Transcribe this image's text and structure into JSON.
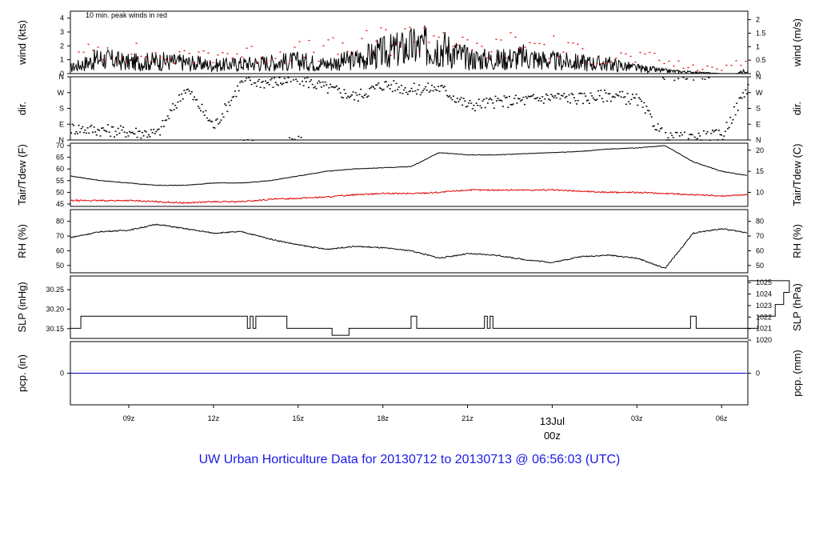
{
  "chart_data": {
    "type": "line",
    "x_range_utc": [
      "2013-07-12 06:56",
      "2013-07-13 06:56"
    ],
    "x_ticks": [
      "09z",
      "12z",
      "15z",
      "18z",
      "21z",
      "13Jul",
      "00z",
      "03z",
      "06z"
    ],
    "x_tick_hours": [
      9,
      12,
      15,
      18,
      21,
      24,
      27,
      30
    ],
    "date_label": "13Jul",
    "date_label_color": "#dd0000",
    "panels": [
      {
        "id": "wind",
        "ylabel_left": "wind (kts)",
        "ylabel_right": "wind (m/s)",
        "ylim": [
          0,
          4.5
        ],
        "left_ticks": [
          "0",
          "1",
          "2",
          "3",
          "4"
        ],
        "right_ticks": [
          "0",
          "0.5",
          "1",
          "1.5",
          "2"
        ],
        "annotation": "10 min. peak winds in red",
        "annotation_color": "#dd0000",
        "series": [
          {
            "name": "wind speed",
            "color": "#000000",
            "x": [
              6.93,
              8,
              9,
              10,
              11,
              12,
              13,
              14,
              15,
              16,
              17,
              18,
              19,
              20,
              21,
              22,
              23,
              24,
              25,
              26,
              27,
              28,
              29,
              30,
              30.5,
              31,
              31.5,
              32
            ],
            "y": [
              0.4,
              1.1,
              0.8,
              0.9,
              0.8,
              0.6,
              0.7,
              0.8,
              0.9,
              0.7,
              1.0,
              1.5,
              1.9,
              2.0,
              1.1,
              1.0,
              1.2,
              0.9,
              0.8,
              0.7,
              0.4,
              0.2,
              0.1,
              0.0,
              0.0,
              0.3,
              1.0,
              0.4
            ]
          },
          {
            "name": "peak",
            "color": "#dd0000",
            "x": [
              7,
              8,
              9,
              10,
              11,
              12,
              13,
              14,
              15,
              16,
              17,
              18,
              19,
              20,
              21,
              22,
              23,
              24,
              25,
              26,
              27,
              28,
              29,
              30,
              31,
              32
            ],
            "y": [
              1.5,
              2.6,
              2.2,
              1.7,
              1.6,
              2.2,
              2.0,
              1.9,
              2.2,
              2.4,
              2.5,
              3.4,
              3.6,
              4.3,
              2.3,
              2.6,
              3.1,
              2.7,
              2.0,
              1.6,
              1.7,
              1.2,
              0.6,
              0.5,
              2.5,
              1.4
            ]
          }
        ]
      },
      {
        "id": "dir",
        "ylabel_left": "dir.",
        "ylabel_right": "dir.",
        "left_ticks": [
          "N",
          "E",
          "S",
          "W",
          "N"
        ],
        "right_ticks": [
          "N",
          "E",
          "S",
          "W",
          "N"
        ],
        "ylim": [
          0,
          360
        ],
        "series": [
          {
            "name": "direction",
            "color": "#000000",
            "style": "points",
            "x": [
              7,
              8,
              9,
              10,
              11,
              12,
              13,
              14,
              15,
              16,
              17,
              18,
              19,
              20,
              21,
              22,
              23,
              24,
              25,
              26,
              27,
              28,
              29,
              30,
              31,
              32
            ],
            "y": [
              70,
              60,
              50,
              40,
              300,
              80,
              340,
              330,
              350,
              300,
              250,
              320,
              290,
              300,
              200,
              220,
              230,
              250,
              240,
              260,
              230,
              10,
              20,
              30,
              340,
              20
            ]
          }
        ]
      },
      {
        "id": "temp",
        "ylabel_left": "Tair/Tdew (F)",
        "ylabel_right": "Tair/Tdew (C)",
        "ylim": [
          44,
          71
        ],
        "left_ticks": [
          "45",
          "50",
          "55",
          "60",
          "65",
          "70"
        ],
        "right_ticks": [
          "10",
          "15",
          "20"
        ],
        "series": [
          {
            "name": "Tair",
            "color": "#000000",
            "x": [
              6.93,
              8,
              9,
              10,
              11,
              12,
              13,
              14,
              15,
              16,
              17,
              18,
              19,
              20,
              21,
              22,
              23,
              24,
              25,
              26,
              27,
              28,
              29,
              30,
              31,
              32
            ],
            "y": [
              57,
              55,
              54,
              53,
              53,
              54,
              54,
              55,
              57,
              59,
              60,
              60.5,
              61,
              67,
              66,
              66,
              66.5,
              67,
              67.5,
              68.5,
              69,
              70,
              63,
              59,
              57,
              54
            ]
          },
          {
            "name": "Tdew",
            "color": "#dd0000",
            "x": [
              6.93,
              8,
              9,
              10,
              11,
              12,
              13,
              14,
              15,
              16,
              17,
              18,
              19,
              20,
              21,
              22,
              23,
              24,
              25,
              26,
              27,
              28,
              29,
              30,
              31,
              32
            ],
            "y": [
              46.5,
              46.5,
              46.5,
              46,
              45.5,
              46,
              46,
              47,
              47.5,
              48,
              49,
              49.5,
              49.5,
              50,
              51,
              51,
              51,
              51,
              50.5,
              50,
              50,
              49.5,
              49,
              48.5,
              49,
              49.5
            ]
          }
        ]
      },
      {
        "id": "rh",
        "ylabel_left": "RH (%)",
        "ylabel_right": "RH (%)",
        "ylim": [
          45,
          88
        ],
        "left_ticks": [
          "50",
          "60",
          "70",
          "80"
        ],
        "right_ticks": [
          "50",
          "60",
          "70",
          "80"
        ],
        "series": [
          {
            "name": "RH",
            "color": "#000000",
            "x": [
              6.93,
              8,
              9,
              10,
              11,
              12,
              13,
              14,
              15,
              16,
              17,
              18,
              19,
              20,
              21,
              22,
              23,
              24,
              25,
              26,
              27,
              28,
              29,
              30,
              31,
              32
            ],
            "y": [
              69,
              73,
              74,
              78,
              75,
              72,
              73,
              68,
              64,
              61,
              63,
              62,
              60,
              55,
              58,
              57,
              54,
              52,
              56,
              57,
              55,
              48,
              72,
              75,
              72,
              84
            ]
          }
        ]
      },
      {
        "id": "slp",
        "ylabel_left": "SLP (inHg)",
        "ylabel_right": "SLP (hPa)",
        "ylim": [
          30.125,
          30.285
        ],
        "left_ticks": [
          "30.15",
          "30.20",
          "30.25"
        ],
        "right_ticks": [
          "1020",
          "1021",
          "1022",
          "1023",
          "1024",
          "1025"
        ],
        "series": [
          {
            "name": "SLP",
            "color": "#000000",
            "style": "step",
            "x": [
              6.93,
              7.3,
              13.2,
              13.3,
              13.4,
              13.5,
              14.6,
              16.2,
              16.8,
              19.0,
              19.2,
              21.6,
              21.7,
              21.8,
              21.9,
              28.9,
              29.1,
              31.3,
              31.9,
              32.2,
              32.4
            ],
            "y": [
              30.151,
              30.182,
              30.151,
              30.182,
              30.151,
              30.182,
              30.151,
              30.133,
              30.151,
              30.182,
              30.151,
              30.182,
              30.151,
              30.182,
              30.151,
              30.182,
              30.151,
              30.182,
              30.212,
              30.243,
              30.273
            ]
          }
        ]
      },
      {
        "id": "pcp",
        "ylabel_left": "pcp. (in)",
        "ylabel_right": "pcp. (mm)",
        "ylim": [
          -1,
          1
        ],
        "left_ticks": [
          "0"
        ],
        "right_ticks": [
          "0"
        ],
        "series": [
          {
            "name": "precip",
            "color": "#0000cc",
            "x": [
              6.93,
              30.93
            ],
            "y": [
              0,
              0
            ]
          }
        ]
      }
    ]
  },
  "footer": "UW Urban Horticulture Data for 20130712  to  20130713 @ 06:56:03  (UTC)"
}
